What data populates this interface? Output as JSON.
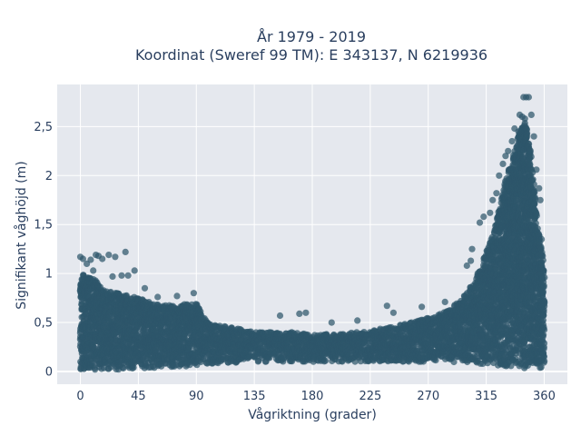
{
  "chart_data": {
    "type": "scatter",
    "title_line1": "År 1979 - 2019",
    "title_line2": "Koordinat (Sweref 99 TM): E 343137, N 6219936",
    "xlabel": "Vågriktning (grader)",
    "ylabel": "Signifikant våghöjd (m)",
    "xlim": [
      -18,
      378
    ],
    "ylim": [
      -0.13,
      2.93
    ],
    "x_ticks": [
      0,
      45,
      90,
      135,
      180,
      225,
      270,
      315,
      360
    ],
    "x_tick_labels": [
      "0",
      "45",
      "90",
      "135",
      "180",
      "225",
      "270",
      "315",
      "360"
    ],
    "y_ticks": [
      0,
      0.5,
      1,
      1.5,
      2,
      2.5
    ],
    "y_tick_labels": [
      "0",
      "0,5",
      "1",
      "1,5",
      "2",
      "2,5"
    ],
    "grid": true,
    "legend": "none",
    "marker_color": "#2e566b",
    "plot_background": "#e5e8ee",
    "envelope": {
      "x": [
        0,
        10,
        20,
        30,
        45,
        60,
        75,
        90,
        100,
        120,
        135,
        150,
        165,
        180,
        200,
        225,
        250,
        270,
        285,
        300,
        310,
        320,
        330,
        340,
        345,
        350,
        355,
        360
      ],
      "lower": [
        0.02,
        0.02,
        0.02,
        0.02,
        0.03,
        0.04,
        0.05,
        0.06,
        0.08,
        0.09,
        0.1,
        0.1,
        0.1,
        0.1,
        0.1,
        0.1,
        0.1,
        0.1,
        0.1,
        0.09,
        0.08,
        0.07,
        0.05,
        0.04,
        0.03,
        0.03,
        0.02,
        0.02
      ],
      "upper": [
        1.0,
        0.95,
        0.82,
        0.8,
        0.75,
        0.68,
        0.68,
        0.7,
        0.48,
        0.45,
        0.4,
        0.4,
        0.4,
        0.38,
        0.38,
        0.42,
        0.48,
        0.55,
        0.62,
        0.8,
        1.05,
        1.4,
        1.95,
        2.4,
        2.6,
        2.2,
        1.5,
        1.1
      ]
    },
    "outliers": [
      {
        "x": 0,
        "y": 1.17
      },
      {
        "x": 2,
        "y": 1.15
      },
      {
        "x": 5,
        "y": 1.1
      },
      {
        "x": 8,
        "y": 1.14
      },
      {
        "x": 12,
        "y": 1.19
      },
      {
        "x": 14,
        "y": 1.18
      },
      {
        "x": 17,
        "y": 1.15
      },
      {
        "x": 22,
        "y": 1.19
      },
      {
        "x": 27,
        "y": 1.17
      },
      {
        "x": 35,
        "y": 1.22
      },
      {
        "x": 10,
        "y": 1.03
      },
      {
        "x": 25,
        "y": 0.97
      },
      {
        "x": 32,
        "y": 0.98
      },
      {
        "x": 37,
        "y": 0.98
      },
      {
        "x": 42,
        "y": 1.03
      },
      {
        "x": 50,
        "y": 0.85
      },
      {
        "x": 60,
        "y": 0.76
      },
      {
        "x": 75,
        "y": 0.77
      },
      {
        "x": 88,
        "y": 0.8
      },
      {
        "x": 155,
        "y": 0.57
      },
      {
        "x": 170,
        "y": 0.59
      },
      {
        "x": 175,
        "y": 0.6
      },
      {
        "x": 195,
        "y": 0.5
      },
      {
        "x": 215,
        "y": 0.52
      },
      {
        "x": 238,
        "y": 0.67
      },
      {
        "x": 243,
        "y": 0.6
      },
      {
        "x": 265,
        "y": 0.66
      },
      {
        "x": 283,
        "y": 0.71
      },
      {
        "x": 300,
        "y": 1.08
      },
      {
        "x": 303,
        "y": 1.13
      },
      {
        "x": 304,
        "y": 1.25
      },
      {
        "x": 310,
        "y": 1.52
      },
      {
        "x": 313,
        "y": 1.58
      },
      {
        "x": 318,
        "y": 1.62
      },
      {
        "x": 320,
        "y": 1.75
      },
      {
        "x": 323,
        "y": 1.82
      },
      {
        "x": 325,
        "y": 2.0
      },
      {
        "x": 328,
        "y": 2.12
      },
      {
        "x": 330,
        "y": 2.2
      },
      {
        "x": 332,
        "y": 2.25
      },
      {
        "x": 335,
        "y": 2.35
      },
      {
        "x": 337,
        "y": 2.48
      },
      {
        "x": 340,
        "y": 2.45
      },
      {
        "x": 341,
        "y": 2.62
      },
      {
        "x": 343,
        "y": 2.6
      },
      {
        "x": 345,
        "y": 2.58
      },
      {
        "x": 344,
        "y": 2.8
      },
      {
        "x": 346,
        "y": 2.8
      },
      {
        "x": 348,
        "y": 2.8
      },
      {
        "x": 350,
        "y": 2.62
      },
      {
        "x": 352,
        "y": 2.4
      },
      {
        "x": 354,
        "y": 2.06
      },
      {
        "x": 356,
        "y": 1.87
      },
      {
        "x": 357,
        "y": 1.75
      },
      {
        "x": 358,
        "y": 1.35
      },
      {
        "x": 357,
        "y": 1.2
      }
    ]
  }
}
